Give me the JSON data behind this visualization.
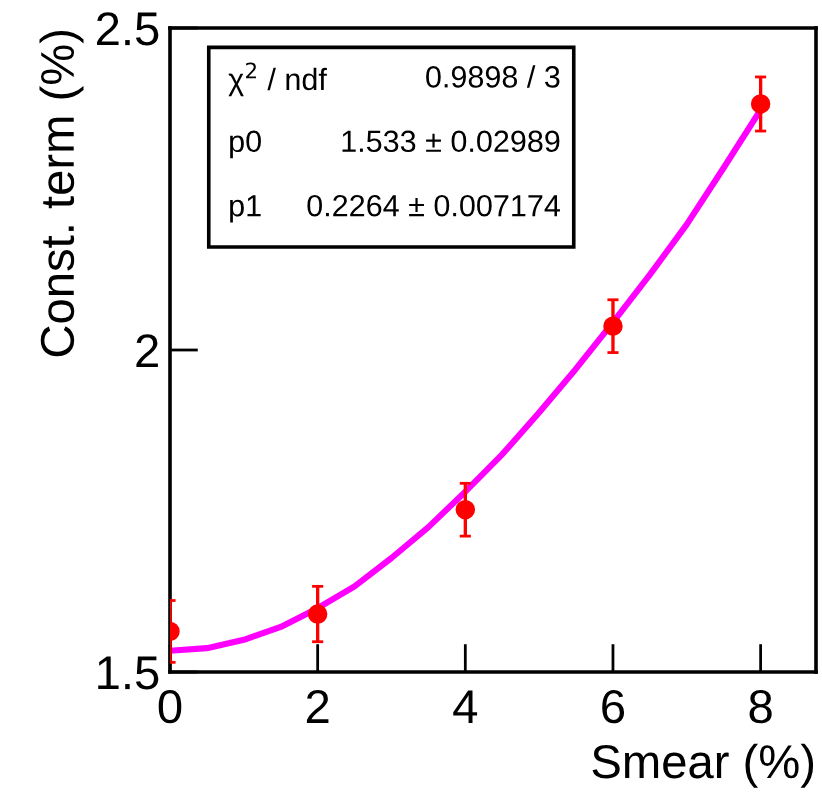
{
  "chart_data": {
    "type": "scatter",
    "xlabel": "Smear (%)",
    "ylabel": "Const. term (%)",
    "x": [
      0,
      2,
      4,
      6,
      8
    ],
    "series": [
      {
        "color": "#ff0000",
        "values": [
          1.563,
          1.59,
          1.752,
          2.037,
          2.382
        ],
        "errors": [
          0.048,
          0.043,
          0.041,
          0.041,
          0.042
        ],
        "marker": "circle"
      },
      {
        "type": "line",
        "color": "#ff00ff",
        "x": [
          0,
          0.5,
          1,
          1.5,
          2,
          2.5,
          3,
          3.5,
          4,
          4.5,
          5,
          5.5,
          6,
          6.5,
          7,
          7.5,
          8
        ],
        "values": [
          1.533,
          1.537,
          1.55,
          1.57,
          1.599,
          1.633,
          1.677,
          1.725,
          1.78,
          1.838,
          1.903,
          1.971,
          2.043,
          2.117,
          2.195,
          2.283,
          2.373
        ],
        "marker": "none",
        "line_style": "solid"
      }
    ],
    "xlim": [
      0,
      8.75
    ],
    "ylim": [
      1.5,
      2.5
    ],
    "xticks": [
      0,
      2,
      4,
      6,
      8
    ],
    "yticks": [
      1.5,
      2,
      2.5
    ],
    "grid": false,
    "legend": false,
    "annotations": [
      "χ$^{2}$ / ndf",
      "0.9898 / 3",
      "p0",
      "1.533 ± 0.02989",
      "p1",
      "0.2264 ± 0.007174"
    ]
  }
}
